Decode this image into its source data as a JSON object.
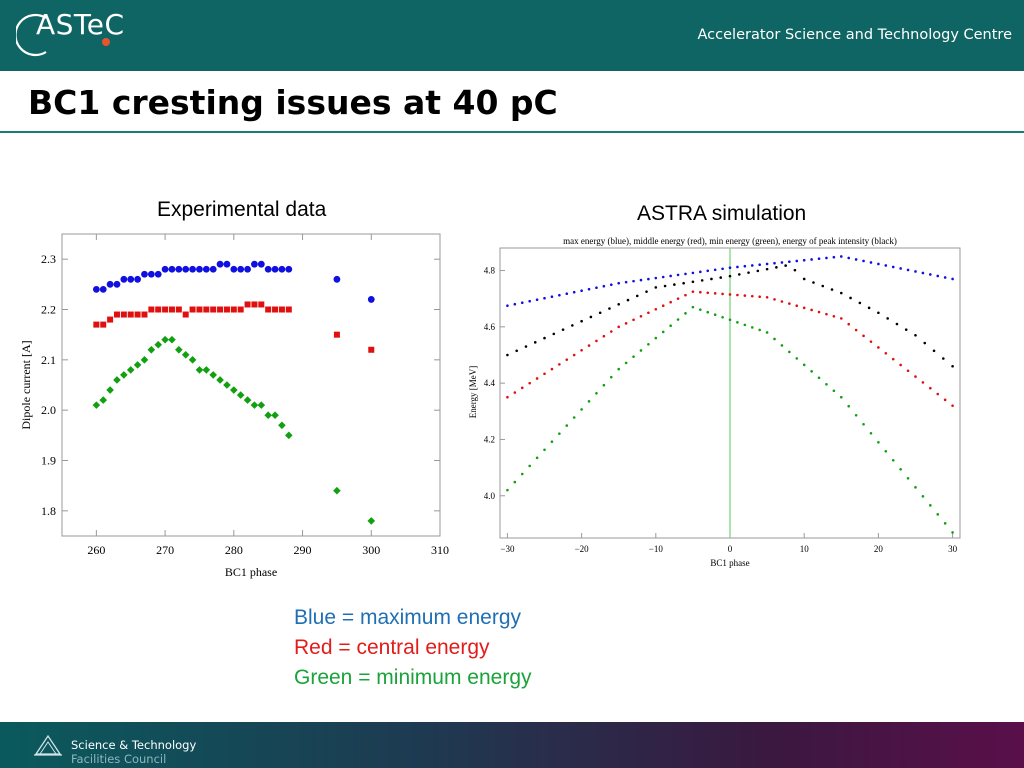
{
  "header": {
    "logo_text": "ASTeC",
    "org_name": "Accelerator Science and Technology Centre"
  },
  "slide": {
    "title": "BC1 cresting issues at 40 pC",
    "caption_left": "Experimental data",
    "caption_right": "ASTRA simulation"
  },
  "legend_text": {
    "blue": "Blue = maximum energy",
    "red": "Red = central energy",
    "green": "Green = minimum energy"
  },
  "footer": {
    "line1": "Science & Technology",
    "line2": "Facilities Council"
  },
  "colors": {
    "header_bg": "#0e6563",
    "blue": "#1010e0",
    "red": "#e01010",
    "green": "#10a010",
    "black": "#000000"
  },
  "chart_data": [
    {
      "type": "scatter",
      "title": "",
      "xlabel": "BC1 phase",
      "ylabel": "Dipole current [A]",
      "xlim": [
        255,
        310
      ],
      "ylim": [
        1.75,
        2.35
      ],
      "xticks": [
        "260",
        "270",
        "280",
        "290",
        "300",
        "310"
      ],
      "yticks": [
        "1.8",
        "1.9",
        "2.0",
        "2.1",
        "2.2",
        "2.3"
      ],
      "grid": false,
      "series": [
        {
          "color": "blue",
          "marker": "circle",
          "x": [
            260,
            261,
            262,
            263,
            264,
            265,
            266,
            267,
            268,
            269,
            270,
            271,
            272,
            273,
            274,
            275,
            276,
            277,
            278,
            279,
            280,
            281,
            282,
            283,
            284,
            285,
            286,
            287,
            288,
            295,
            300
          ],
          "y": [
            2.24,
            2.24,
            2.25,
            2.25,
            2.26,
            2.26,
            2.26,
            2.27,
            2.27,
            2.27,
            2.28,
            2.28,
            2.28,
            2.28,
            2.28,
            2.28,
            2.28,
            2.28,
            2.29,
            2.29,
            2.28,
            2.28,
            2.28,
            2.29,
            2.29,
            2.28,
            2.28,
            2.28,
            2.28,
            2.26,
            2.22
          ]
        },
        {
          "color": "red",
          "marker": "square",
          "x": [
            260,
            261,
            262,
            263,
            264,
            265,
            266,
            267,
            268,
            269,
            270,
            271,
            272,
            273,
            274,
            275,
            276,
            277,
            278,
            279,
            280,
            281,
            282,
            283,
            284,
            285,
            286,
            287,
            288,
            295,
            300
          ],
          "y": [
            2.17,
            2.17,
            2.18,
            2.19,
            2.19,
            2.19,
            2.19,
            2.19,
            2.2,
            2.2,
            2.2,
            2.2,
            2.2,
            2.19,
            2.2,
            2.2,
            2.2,
            2.2,
            2.2,
            2.2,
            2.2,
            2.2,
            2.21,
            2.21,
            2.21,
            2.2,
            2.2,
            2.2,
            2.2,
            2.15,
            2.12
          ]
        },
        {
          "color": "green",
          "marker": "diamond",
          "x": [
            260,
            261,
            262,
            263,
            264,
            265,
            266,
            267,
            268,
            269,
            270,
            271,
            272,
            273,
            274,
            275,
            276,
            277,
            278,
            279,
            280,
            281,
            282,
            283,
            284,
            285,
            286,
            287,
            288,
            295,
            300
          ],
          "y": [
            2.01,
            2.02,
            2.04,
            2.06,
            2.07,
            2.08,
            2.09,
            2.1,
            2.12,
            2.13,
            2.14,
            2.14,
            2.12,
            2.11,
            2.1,
            2.08,
            2.08,
            2.07,
            2.06,
            2.05,
            2.04,
            2.03,
            2.02,
            2.01,
            2.01,
            1.99,
            1.99,
            1.97,
            1.95,
            1.84,
            1.78
          ]
        }
      ]
    },
    {
      "type": "scatter",
      "title": "max energy (blue), middle energy (red), min energy (green), energy of peak intensity (black)",
      "xlabel": "BC1 phase",
      "ylabel": "Energy [MeV]",
      "xlim": [
        -31,
        31
      ],
      "ylim": [
        3.85,
        4.88
      ],
      "xticks": [
        "-30",
        "-20",
        "-10",
        "0",
        "10",
        "20",
        "30"
      ],
      "yticks": [
        "4.0",
        "4.2",
        "4.4",
        "4.6",
        "4.8"
      ],
      "vline_x": 0,
      "grid": false,
      "series": [
        {
          "color": "blue",
          "x": [
            -30,
            -15,
            0,
            15,
            30
          ],
          "y": [
            4.675,
            4.755,
            4.81,
            4.85,
            4.77
          ]
        },
        {
          "color": "red",
          "x": [
            -30,
            -15,
            -5,
            5,
            15,
            30
          ],
          "y": [
            4.35,
            4.6,
            4.725,
            4.705,
            4.63,
            4.32
          ]
        },
        {
          "color": "green",
          "x": [
            -30,
            -15,
            -5,
            5,
            15,
            30
          ],
          "y": [
            4.02,
            4.45,
            4.67,
            4.58,
            4.35,
            3.87
          ]
        },
        {
          "color": "black",
          "x": [
            -30,
            -25,
            -20,
            -15,
            -10,
            -5,
            0,
            8,
            10,
            15,
            20,
            25,
            30
          ],
          "y": [
            4.5,
            4.56,
            4.62,
            4.68,
            4.74,
            4.76,
            4.78,
            4.82,
            4.77,
            4.72,
            4.65,
            4.57,
            4.46
          ]
        }
      ]
    }
  ]
}
